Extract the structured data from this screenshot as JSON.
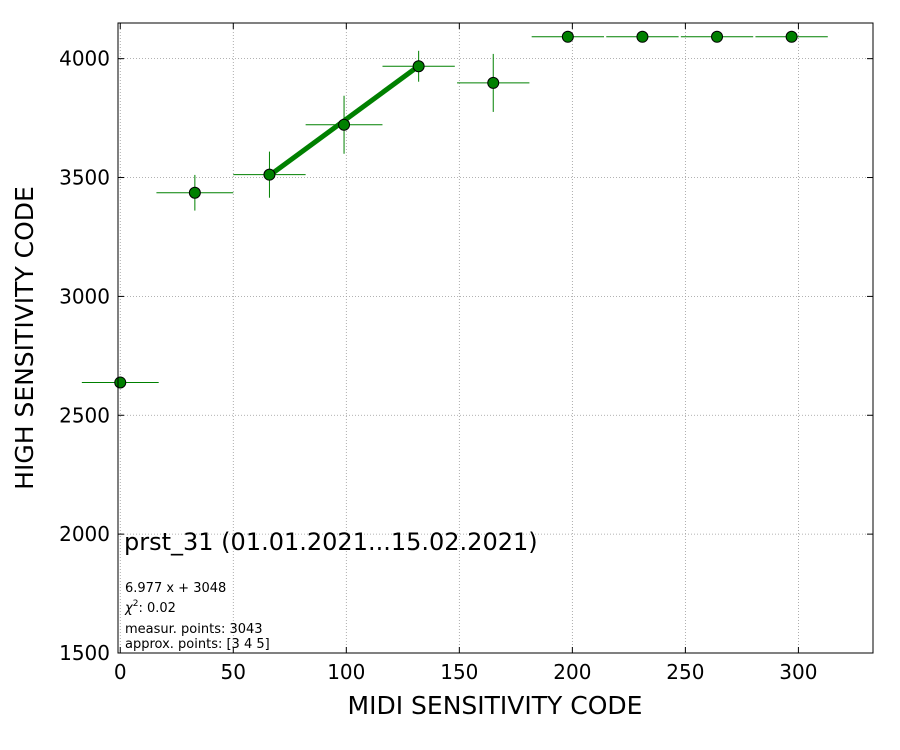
{
  "chart_data": {
    "type": "scatter",
    "title": "",
    "xlabel": "MIDI SENSITIVITY CODE",
    "ylabel": "HIGH SENSITIVITY CODE",
    "xlim": [
      -1,
      333
    ],
    "ylim": [
      1500,
      4150
    ],
    "x_ticks": [
      0,
      50,
      100,
      150,
      200,
      250,
      300
    ],
    "y_ticks": [
      1500,
      2000,
      2500,
      3000,
      3500,
      4000
    ],
    "x_tick_labels": [
      "0",
      "50",
      "100",
      "150",
      "200",
      "250",
      "300"
    ],
    "y_tick_labels": [
      "1500",
      "2000",
      "2500",
      "3000",
      "3500",
      "4000"
    ],
    "grid": true,
    "marker_color": "#008000",
    "marker_edge_color": "#000000",
    "points": [
      {
        "x": 0,
        "y": 2638,
        "xerr": 17,
        "yerr": 0
      },
      {
        "x": 33,
        "y": 3436,
        "xerr": 17,
        "yerr": 75
      },
      {
        "x": 66,
        "y": 3512,
        "xerr": 16,
        "yerr": 97
      },
      {
        "x": 99,
        "y": 3722,
        "xerr": 17,
        "yerr": 122
      },
      {
        "x": 132,
        "y": 3968,
        "xerr": 16,
        "yerr": 65
      },
      {
        "x": 165,
        "y": 3898,
        "xerr": 16,
        "yerr": 122
      },
      {
        "x": 198,
        "y": 4092,
        "xerr": 16,
        "yerr": 0
      },
      {
        "x": 231,
        "y": 4092,
        "xerr": 16,
        "yerr": 0
      },
      {
        "x": 264,
        "y": 4092,
        "xerr": 16,
        "yerr": 0
      },
      {
        "x": 297,
        "y": 4092,
        "xerr": 16,
        "yerr": 0
      }
    ],
    "fit_line": {
      "slope": 6.977,
      "intercept": 3048,
      "x_start": 66,
      "x_end": 132,
      "color": "#008000"
    },
    "annotations": {
      "title_text": "prst_31 (01.01.2021...15.02.2021)",
      "equation": "6.977 x + 3048",
      "chi_prefix": "χ",
      "chi_sup": "2",
      "chi_value": ": 0.02",
      "measur_points": "measur. points: 3043",
      "approx_points": "approx. points: [3 4 5]"
    }
  }
}
